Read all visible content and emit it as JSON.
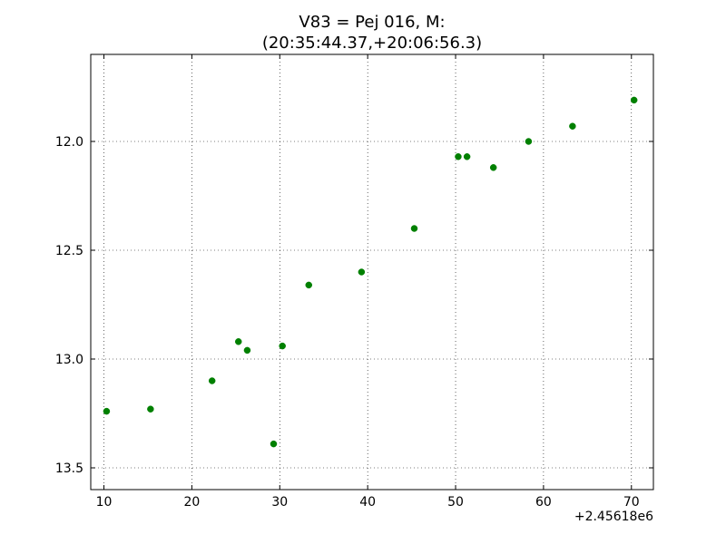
{
  "chart_data": {
    "type": "scatter",
    "title_lines": [
      "V83 = Pej 016, M:",
      "(20:35:44.37,+20:06:56.3)"
    ],
    "xlabel": "",
    "ylabel": "",
    "x_offset_label": "+2.45618e6",
    "xlim": [
      8.5,
      72.5
    ],
    "ylim": [
      11.6,
      13.6
    ],
    "y_inverted": true,
    "grid": true,
    "marker_color": "#008000",
    "x_ticks": [
      10,
      20,
      30,
      40,
      50,
      60,
      70
    ],
    "x_tick_labels": [
      "10",
      "20",
      "30",
      "40",
      "50",
      "60",
      "70"
    ],
    "y_ticks": [
      12.0,
      12.5,
      13.0,
      13.5
    ],
    "y_tick_labels": [
      "12.0",
      "12.5",
      "13.0",
      "13.5"
    ],
    "points": [
      {
        "x": 10.3,
        "y": 13.24
      },
      {
        "x": 15.3,
        "y": 13.23
      },
      {
        "x": 22.3,
        "y": 13.1
      },
      {
        "x": 25.3,
        "y": 12.92
      },
      {
        "x": 26.3,
        "y": 12.96
      },
      {
        "x": 29.3,
        "y": 13.39
      },
      {
        "x": 30.3,
        "y": 12.94
      },
      {
        "x": 33.3,
        "y": 12.66
      },
      {
        "x": 39.3,
        "y": 12.6
      },
      {
        "x": 45.3,
        "y": 12.4
      },
      {
        "x": 50.3,
        "y": 12.07
      },
      {
        "x": 51.3,
        "y": 12.07
      },
      {
        "x": 54.3,
        "y": 12.12
      },
      {
        "x": 58.3,
        "y": 12.0
      },
      {
        "x": 63.3,
        "y": 11.93
      },
      {
        "x": 70.3,
        "y": 11.81
      }
    ]
  }
}
